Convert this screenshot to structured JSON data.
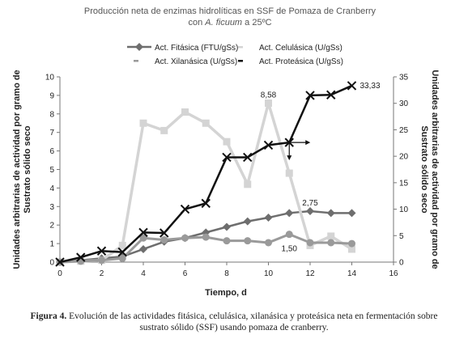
{
  "chart_data": {
    "type": "line",
    "title_line1": "Producción neta de enzimas hidrolíticas en SSF de Pomaza de Cranberry",
    "title_line2_prefix": "con ",
    "title_line2_italic": "A. ficuum",
    "title_line2_suffix": "  a 25ºC",
    "xlabel": "Tiempo, d",
    "ylabel_left": [
      "Unidades arbitrarias de actividad por gramo de",
      "Sustrato sólido seco"
    ],
    "ylabel_right": [
      "Unidades arbitrarias de actividad por gramo de",
      "Sustrato sólido seco"
    ],
    "xlim": [
      0,
      16
    ],
    "xticks": [
      "0",
      "2",
      "4",
      "6",
      "8",
      "10",
      "12",
      "14",
      "16"
    ],
    "ylim_left": [
      0,
      10
    ],
    "yticks_left": [
      "0",
      "1",
      "2",
      "3",
      "4",
      "5",
      "6",
      "7",
      "8",
      "9",
      "10"
    ],
    "ylim_right": [
      0,
      35
    ],
    "yticks_right": [
      "0",
      "5",
      "10",
      "15",
      "20",
      "25",
      "30",
      "35"
    ],
    "grid": false,
    "legend_position": "top",
    "series": [
      {
        "name": "Act. Fitásica (FTU/gSs)",
        "axis": "left",
        "color": "#6e6e6e",
        "marker": "diamond",
        "x": [
          0,
          1,
          2,
          3,
          4,
          5,
          6,
          7,
          8,
          9,
          10,
          11,
          12,
          13,
          14
        ],
        "y": [
          0.0,
          0.1,
          0.2,
          0.3,
          0.7,
          1.1,
          1.3,
          1.6,
          1.9,
          2.2,
          2.4,
          2.65,
          2.75,
          2.65,
          2.65
        ]
      },
      {
        "name": "Act. Celulásica (U/gSs)",
        "axis": "left",
        "color": "#d4d4d4",
        "marker": "square",
        "x": [
          0,
          1,
          2,
          3,
          4,
          5,
          6,
          7,
          8,
          9,
          10,
          11,
          12,
          13,
          14
        ],
        "y": [
          0.0,
          0.05,
          0.1,
          0.9,
          7.5,
          7.1,
          8.1,
          7.5,
          6.5,
          4.2,
          8.58,
          4.8,
          0.9,
          1.4,
          0.7
        ]
      },
      {
        "name": "Act. Xilanásica (U/gSs)",
        "axis": "left",
        "color": "#9a9a9a",
        "marker": "circle",
        "x": [
          0,
          1,
          2,
          3,
          4,
          5,
          6,
          7,
          8,
          9,
          10,
          11,
          12,
          13,
          14
        ],
        "y": [
          0.0,
          0.05,
          0.1,
          0.2,
          1.3,
          1.2,
          1.3,
          1.35,
          1.15,
          1.15,
          1.05,
          1.5,
          1.05,
          1.05,
          1.0
        ]
      },
      {
        "name": "Act. Proteásica (U/gSs)",
        "axis": "right",
        "color": "#111111",
        "marker": "x",
        "x": [
          0,
          1,
          2,
          3,
          4,
          5,
          6,
          7,
          8,
          9,
          10,
          11,
          12,
          13,
          14
        ],
        "y": [
          0.0,
          0.9,
          2.1,
          1.9,
          5.6,
          5.5,
          10.0,
          11.1,
          19.8,
          19.8,
          22.1,
          22.6,
          31.5,
          31.6,
          33.33
        ]
      }
    ],
    "annotations": [
      {
        "text": "33,33",
        "series": 3,
        "point": 14
      },
      {
        "text": "8,58",
        "series": 1,
        "point": 10
      },
      {
        "text": "2,75",
        "series": 0,
        "point": 12
      },
      {
        "text": "1,50",
        "series": 2,
        "point": 11
      }
    ]
  },
  "caption": {
    "label": "Figura 4.",
    "text": " Evolución de las actividades fitásica, celulásica, xilanásica y proteásica neta en fermentación sobre sustrato sólido (SSF) usando pomaza de cranberry."
  }
}
